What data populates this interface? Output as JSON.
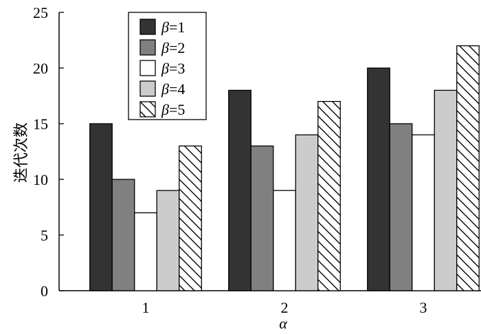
{
  "chart_data": {
    "type": "bar",
    "title": "",
    "xlabel": "α",
    "ylabel": "迭代次数",
    "categories": [
      "1",
      "2",
      "3"
    ],
    "ylim": [
      0,
      25
    ],
    "yticks": [
      "0",
      "5",
      "10",
      "15",
      "20",
      "25"
    ],
    "grid": false,
    "legend_position": "top-left",
    "series": [
      {
        "name": "β=1",
        "symbol": "β",
        "rest": "=1",
        "values": [
          15,
          18,
          20
        ],
        "fill": "#333333",
        "pattern": "solid"
      },
      {
        "name": "β=2",
        "symbol": "β",
        "rest": "=2",
        "values": [
          10,
          13,
          15
        ],
        "fill": "#808080",
        "pattern": "solid"
      },
      {
        "name": "β=3",
        "symbol": "β",
        "rest": "=3",
        "values": [
          7,
          9,
          14
        ],
        "fill": "#ffffff",
        "pattern": "solid"
      },
      {
        "name": "β=4",
        "symbol": "β",
        "rest": "=4",
        "values": [
          9,
          14,
          18
        ],
        "fill": "#cccccc",
        "pattern": "solid"
      },
      {
        "name": "β=5",
        "symbol": "β",
        "rest": "=5",
        "values": [
          13,
          17,
          22
        ],
        "fill": "#ffffff",
        "pattern": "hatch"
      }
    ]
  }
}
